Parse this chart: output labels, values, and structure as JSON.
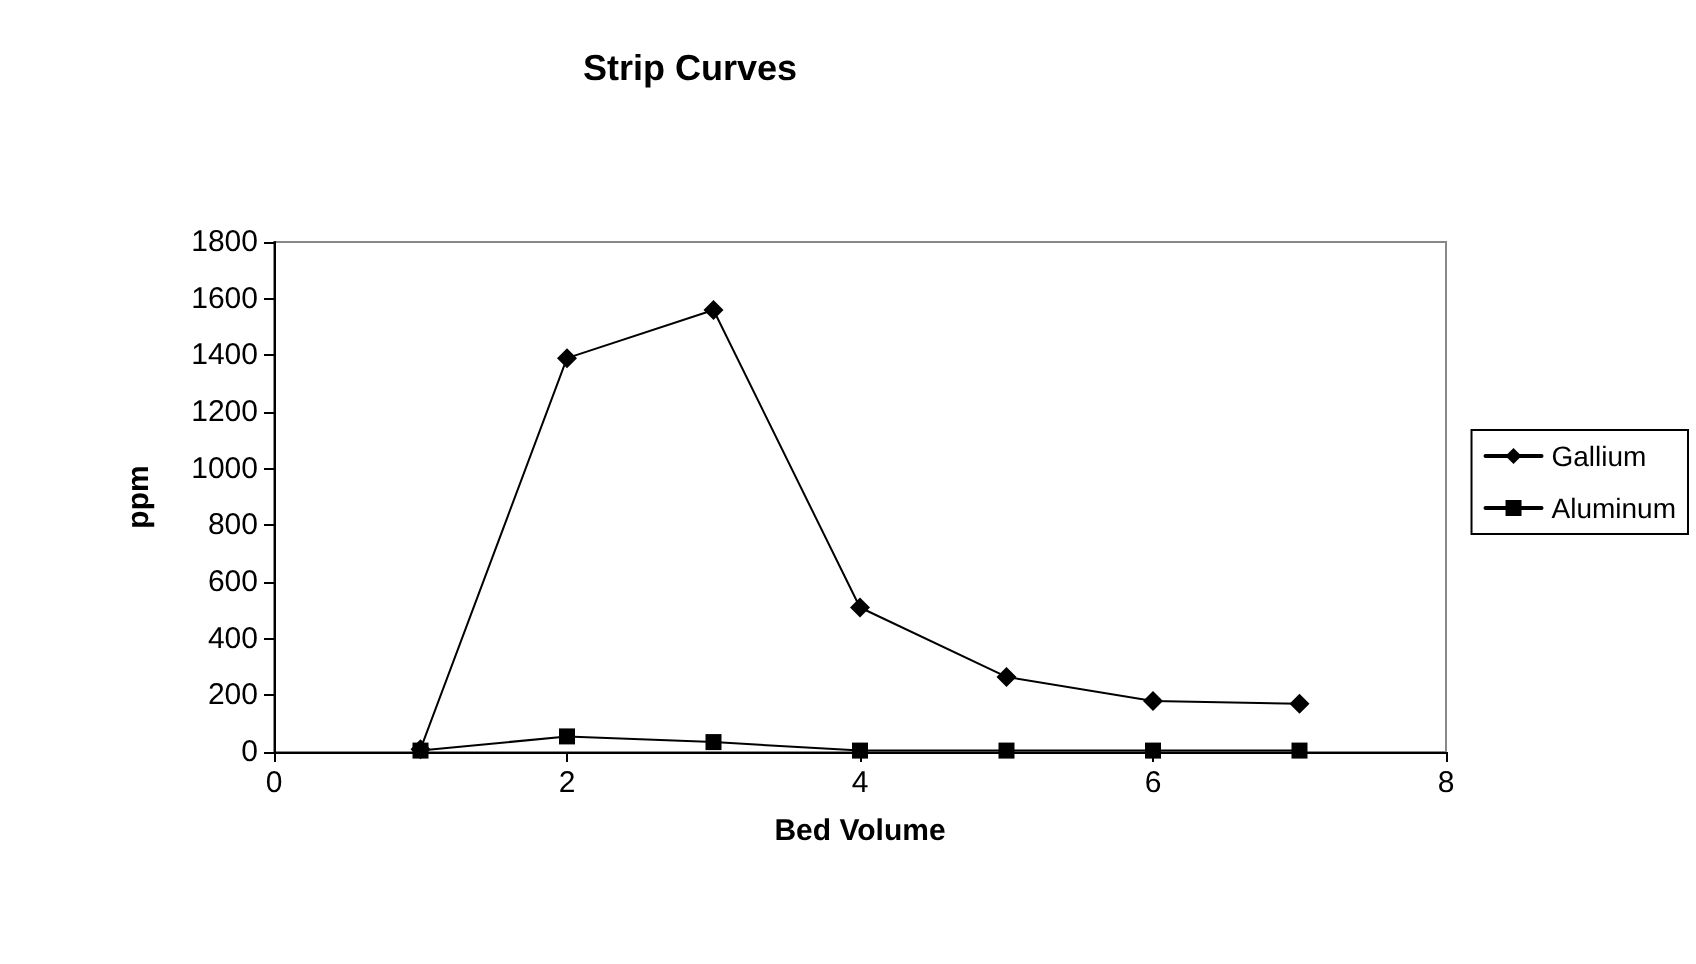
{
  "chart_data": {
    "type": "line",
    "title": "Strip Curves",
    "xlabel": "Bed Volume",
    "ylabel": "ppm",
    "x": [
      1,
      2,
      3,
      4,
      5,
      6,
      7
    ],
    "series": [
      {
        "name": "Gallium",
        "color": "#000000",
        "marker": "diamond",
        "values": [
          10,
          1390,
          1560,
          510,
          265,
          180,
          170
        ]
      },
      {
        "name": "Aluminum",
        "color": "#000000",
        "marker": "square",
        "values": [
          5,
          55,
          35,
          5,
          5,
          5,
          5
        ]
      }
    ],
    "xlim": [
      0,
      8
    ],
    "xticks": [
      0,
      2,
      4,
      6,
      8
    ],
    "ylim": [
      0,
      1800
    ],
    "yticks": [
      0,
      200,
      400,
      600,
      800,
      1000,
      1200,
      1400,
      1600,
      1800
    ],
    "grid": false,
    "legend": "right",
    "line_style": "solid"
  }
}
